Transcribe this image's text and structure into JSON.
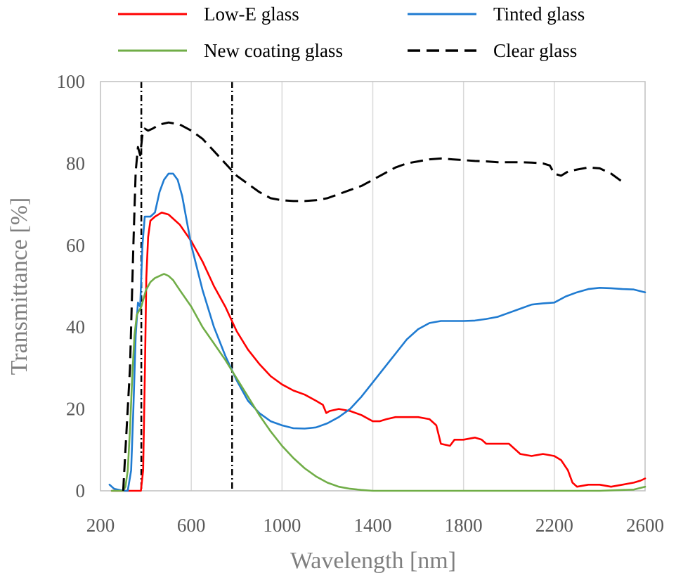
{
  "chart_data": {
    "type": "line",
    "xlabel": "Wavelength [nm]",
    "ylabel": "Transmittance [%]",
    "xlim": [
      200,
      2600
    ],
    "ylim": [
      0,
      100
    ],
    "xticks": [
      200,
      600,
      1000,
      1400,
      1800,
      2200,
      2600
    ],
    "yticks": [
      0,
      20,
      40,
      60,
      80,
      100
    ],
    "grid": "vertical",
    "legend_position": "top",
    "reference_lines_x": [
      380,
      780
    ],
    "series": [
      {
        "name": "Low-E glass",
        "color": "#ff0000",
        "style": "solid",
        "points": [
          [
            250,
            0
          ],
          [
            300,
            0
          ],
          [
            360,
            0
          ],
          [
            378,
            0
          ],
          [
            388,
            5
          ],
          [
            396,
            30
          ],
          [
            402,
            52
          ],
          [
            410,
            62
          ],
          [
            420,
            66
          ],
          [
            440,
            67
          ],
          [
            470,
            68
          ],
          [
            500,
            67.5
          ],
          [
            550,
            65
          ],
          [
            600,
            61
          ],
          [
            650,
            56
          ],
          [
            700,
            50
          ],
          [
            750,
            45
          ],
          [
            800,
            39
          ],
          [
            850,
            34.5
          ],
          [
            900,
            31
          ],
          [
            950,
            28
          ],
          [
            1000,
            26
          ],
          [
            1050,
            24.5
          ],
          [
            1100,
            23.5
          ],
          [
            1150,
            22
          ],
          [
            1180,
            21
          ],
          [
            1195,
            19
          ],
          [
            1210,
            19.5
          ],
          [
            1250,
            20
          ],
          [
            1300,
            19.5
          ],
          [
            1350,
            18.5
          ],
          [
            1400,
            17
          ],
          [
            1430,
            17
          ],
          [
            1460,
            17.5
          ],
          [
            1500,
            18
          ],
          [
            1550,
            18
          ],
          [
            1600,
            18
          ],
          [
            1650,
            17.5
          ],
          [
            1680,
            16
          ],
          [
            1700,
            11.5
          ],
          [
            1740,
            11
          ],
          [
            1760,
            12.5
          ],
          [
            1800,
            12.5
          ],
          [
            1850,
            13
          ],
          [
            1880,
            12.5
          ],
          [
            1900,
            11.5
          ],
          [
            1950,
            11.5
          ],
          [
            2000,
            11.5
          ],
          [
            2050,
            9
          ],
          [
            2100,
            8.5
          ],
          [
            2150,
            9
          ],
          [
            2200,
            8.5
          ],
          [
            2230,
            7.5
          ],
          [
            2260,
            5
          ],
          [
            2280,
            2
          ],
          [
            2300,
            1
          ],
          [
            2350,
            1.5
          ],
          [
            2400,
            1.5
          ],
          [
            2450,
            1
          ],
          [
            2500,
            1.5
          ],
          [
            2550,
            2
          ],
          [
            2580,
            2.5
          ],
          [
            2600,
            3
          ]
        ]
      },
      {
        "name": "Tinted glass",
        "color": "#1f7bd1",
        "style": "solid",
        "points": [
          [
            240,
            1.5
          ],
          [
            260,
            0.5
          ],
          [
            300,
            0
          ],
          [
            320,
            0
          ],
          [
            335,
            5
          ],
          [
            345,
            20
          ],
          [
            355,
            38
          ],
          [
            365,
            46
          ],
          [
            375,
            45
          ],
          [
            385,
            60
          ],
          [
            395,
            67
          ],
          [
            405,
            67
          ],
          [
            420,
            67
          ],
          [
            440,
            68
          ],
          [
            460,
            73
          ],
          [
            480,
            76
          ],
          [
            500,
            77.5
          ],
          [
            520,
            77.5
          ],
          [
            540,
            76
          ],
          [
            560,
            72
          ],
          [
            580,
            66
          ],
          [
            600,
            60
          ],
          [
            650,
            49
          ],
          [
            700,
            40
          ],
          [
            750,
            33
          ],
          [
            800,
            27
          ],
          [
            850,
            22
          ],
          [
            900,
            19
          ],
          [
            950,
            17
          ],
          [
            1000,
            16
          ],
          [
            1050,
            15.3
          ],
          [
            1100,
            15.2
          ],
          [
            1150,
            15.5
          ],
          [
            1200,
            16.5
          ],
          [
            1250,
            18
          ],
          [
            1300,
            20
          ],
          [
            1350,
            23
          ],
          [
            1400,
            26.5
          ],
          [
            1450,
            30
          ],
          [
            1500,
            33.5
          ],
          [
            1550,
            37
          ],
          [
            1600,
            39.5
          ],
          [
            1650,
            41
          ],
          [
            1700,
            41.5
          ],
          [
            1750,
            41.5
          ],
          [
            1800,
            41.5
          ],
          [
            1850,
            41.6
          ],
          [
            1900,
            42
          ],
          [
            1950,
            42.5
          ],
          [
            2000,
            43.5
          ],
          [
            2050,
            44.5
          ],
          [
            2100,
            45.5
          ],
          [
            2150,
            45.8
          ],
          [
            2200,
            46
          ],
          [
            2250,
            47.5
          ],
          [
            2300,
            48.5
          ],
          [
            2350,
            49.3
          ],
          [
            2400,
            49.6
          ],
          [
            2450,
            49.5
          ],
          [
            2500,
            49.3
          ],
          [
            2550,
            49.2
          ],
          [
            2600,
            48.5
          ]
        ]
      },
      {
        "name": "New coating glass",
        "color": "#70ad47",
        "style": "solid",
        "points": [
          [
            250,
            0
          ],
          [
            300,
            0
          ],
          [
            310,
            1
          ],
          [
            320,
            5
          ],
          [
            330,
            15
          ],
          [
            340,
            28
          ],
          [
            350,
            38
          ],
          [
            360,
            43
          ],
          [
            380,
            45
          ],
          [
            400,
            49
          ],
          [
            420,
            51
          ],
          [
            440,
            52
          ],
          [
            460,
            52.5
          ],
          [
            480,
            53
          ],
          [
            500,
            52.5
          ],
          [
            520,
            51.5
          ],
          [
            550,
            49
          ],
          [
            600,
            45
          ],
          [
            650,
            40
          ],
          [
            700,
            36
          ],
          [
            750,
            32
          ],
          [
            800,
            27.5
          ],
          [
            850,
            23
          ],
          [
            900,
            18.5
          ],
          [
            950,
            14.5
          ],
          [
            1000,
            11
          ],
          [
            1050,
            8
          ],
          [
            1100,
            5.5
          ],
          [
            1150,
            3.5
          ],
          [
            1200,
            2
          ],
          [
            1250,
            1
          ],
          [
            1300,
            0.5
          ],
          [
            1350,
            0.2
          ],
          [
            1400,
            0
          ],
          [
            1500,
            0
          ],
          [
            1600,
            0
          ],
          [
            1800,
            0
          ],
          [
            2000,
            0
          ],
          [
            2200,
            0
          ],
          [
            2400,
            0
          ],
          [
            2550,
            0.3
          ],
          [
            2600,
            1
          ]
        ]
      },
      {
        "name": "Clear glass",
        "color": "#000000",
        "style": "dashed",
        "points": [
          [
            300,
            0
          ],
          [
            330,
            30
          ],
          [
            345,
            60
          ],
          [
            355,
            78
          ],
          [
            365,
            84
          ],
          [
            375,
            82
          ],
          [
            385,
            87
          ],
          [
            395,
            88.5
          ],
          [
            410,
            88
          ],
          [
            430,
            88.5
          ],
          [
            460,
            89.5
          ],
          [
            500,
            90
          ],
          [
            550,
            89.5
          ],
          [
            600,
            88
          ],
          [
            650,
            86
          ],
          [
            700,
            83
          ],
          [
            750,
            80
          ],
          [
            800,
            77
          ],
          [
            850,
            75
          ],
          [
            900,
            73
          ],
          [
            950,
            71.5
          ],
          [
            1000,
            71
          ],
          [
            1050,
            70.8
          ],
          [
            1100,
            70.8
          ],
          [
            1150,
            71
          ],
          [
            1200,
            71.5
          ],
          [
            1250,
            72.5
          ],
          [
            1300,
            73.5
          ],
          [
            1350,
            74.5
          ],
          [
            1400,
            76
          ],
          [
            1450,
            77.5
          ],
          [
            1500,
            79
          ],
          [
            1550,
            80
          ],
          [
            1600,
            80.5
          ],
          [
            1650,
            81
          ],
          [
            1700,
            81.2
          ],
          [
            1750,
            81
          ],
          [
            1800,
            80.8
          ],
          [
            1850,
            80.6
          ],
          [
            1900,
            80.5
          ],
          [
            1950,
            80.3
          ],
          [
            2000,
            80.3
          ],
          [
            2050,
            80.3
          ],
          [
            2100,
            80.2
          ],
          [
            2150,
            80
          ],
          [
            2180,
            79.5
          ],
          [
            2200,
            77.5
          ],
          [
            2230,
            77
          ],
          [
            2260,
            78
          ],
          [
            2300,
            78.5
          ],
          [
            2350,
            79
          ],
          [
            2400,
            78.8
          ],
          [
            2450,
            77.5
          ],
          [
            2500,
            75.5
          ]
        ]
      }
    ]
  }
}
